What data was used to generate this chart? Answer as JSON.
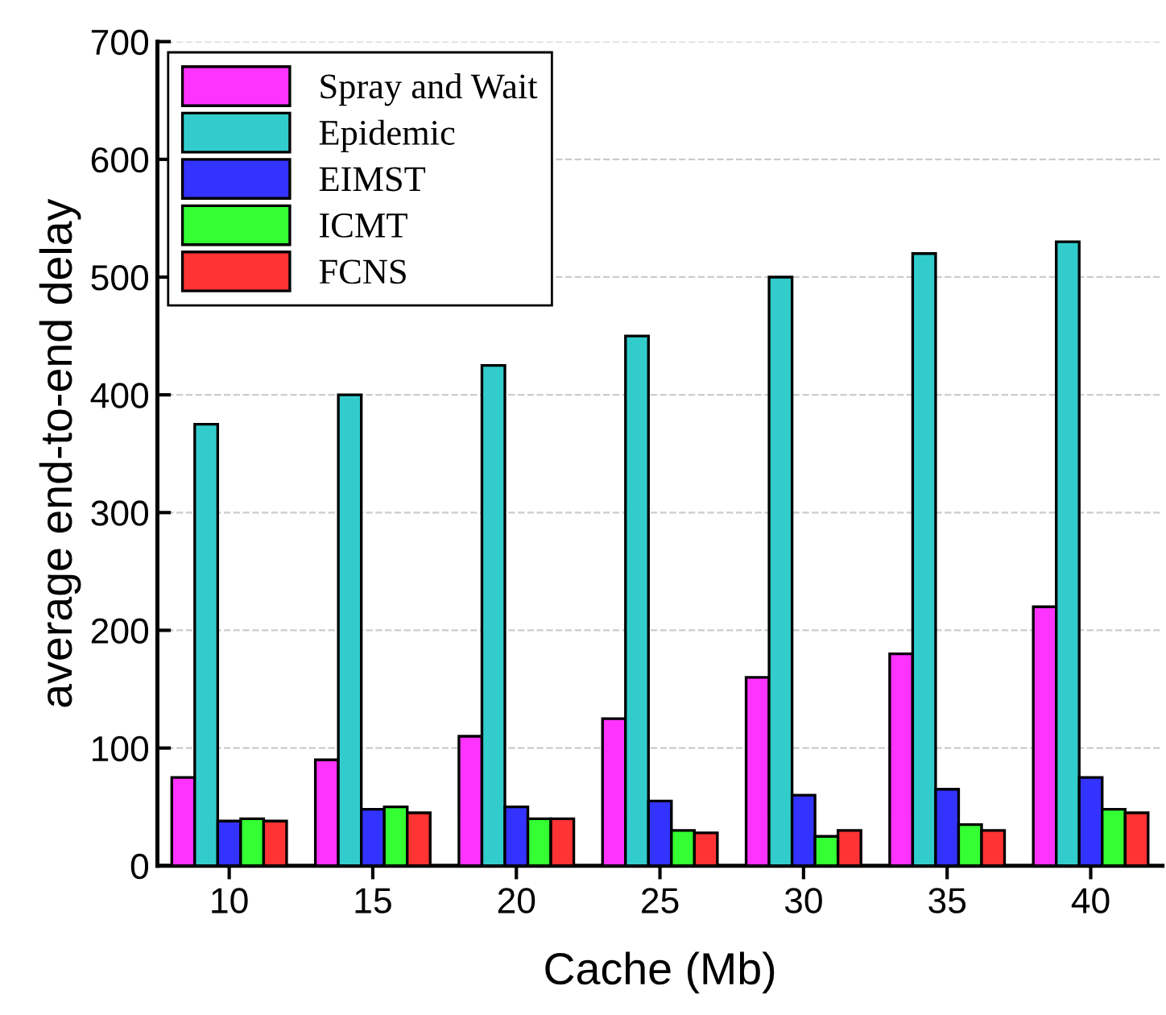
{
  "chart_data": {
    "type": "bar",
    "xlabel": "Cache (Mb)",
    "ylabel": "average end-to-end delay",
    "categories": [
      "10",
      "15",
      "20",
      "25",
      "30",
      "35",
      "40"
    ],
    "series": [
      {
        "name": "Spray and Wait",
        "color": "#ff33ff",
        "values": [
          75,
          90,
          110,
          125,
          160,
          180,
          220
        ]
      },
      {
        "name": "Epidemic",
        "color": "#33cccc",
        "values": [
          375,
          400,
          425,
          450,
          500,
          520,
          530
        ]
      },
      {
        "name": "EIMST",
        "color": "#3333ff",
        "values": [
          38,
          48,
          50,
          55,
          60,
          65,
          75
        ]
      },
      {
        "name": "ICMT",
        "color": "#33ff33",
        "values": [
          40,
          50,
          40,
          30,
          25,
          35,
          48
        ]
      },
      {
        "name": "FCNS",
        "color": "#ff3333",
        "values": [
          38,
          45,
          40,
          28,
          30,
          30,
          45
        ]
      }
    ],
    "ylim": [
      0,
      700
    ],
    "yticks": [
      0,
      100,
      200,
      300,
      400,
      500,
      600,
      700
    ],
    "grid": "y",
    "legend": "top left"
  }
}
